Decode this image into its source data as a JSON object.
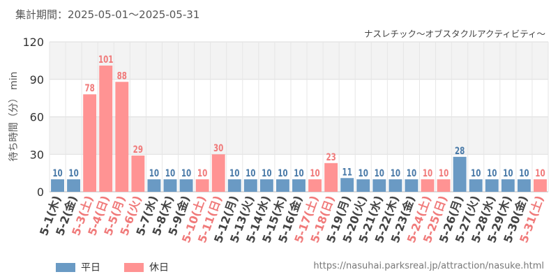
{
  "header": {
    "period": "集計期間：2025-05-01～2025-05-31",
    "attraction": "ナスレチック～オブスタクルアクティビティ～"
  },
  "legend": {
    "weekday": "平日",
    "holiday": "休日"
  },
  "source": "https://nasuhai.parksreal.jp/attraction/nasuke.html",
  "colors": {
    "weekday": "#6a9ac4",
    "holiday": "#ff9393",
    "weekday_label": "#4a7aa8",
    "holiday_label": "#f07a7a",
    "holiday_band": "#f3f3f3"
  },
  "chart_data": {
    "type": "bar",
    "ylabel": "待ち時間（分） min",
    "ylim": [
      0,
      120
    ],
    "yticks": [
      0,
      30,
      60,
      90,
      120
    ],
    "grid": true,
    "legend_position": "bottom-left",
    "categories": [
      "5-1(木)",
      "5-2(金)",
      "5-3(土)",
      "5-4(日)",
      "5-5(月)",
      "5-6(火)",
      "5-7(水)",
      "5-8(木)",
      "5-9(金)",
      "5-10(土)",
      "5-11(日)",
      "5-12(月)",
      "5-13(火)",
      "5-14(水)",
      "5-15(木)",
      "5-16(金)",
      "5-17(土)",
      "5-18(日)",
      "5-19(月)",
      "5-20(火)",
      "5-21(水)",
      "5-22(木)",
      "5-23(金)",
      "5-24(土)",
      "5-25(日)",
      "5-26(月)",
      "5-27(火)",
      "5-28(水)",
      "5-29(木)",
      "5-30(金)",
      "5-31(土)"
    ],
    "values": [
      10,
      10,
      78,
      101,
      88,
      29,
      10,
      10,
      10,
      10,
      30,
      10,
      10,
      10,
      10,
      10,
      10,
      23,
      11,
      10,
      10,
      10,
      10,
      10,
      10,
      28,
      10,
      10,
      10,
      10,
      10
    ],
    "holiday": [
      false,
      false,
      true,
      true,
      true,
      true,
      false,
      false,
      false,
      true,
      true,
      false,
      false,
      false,
      false,
      false,
      true,
      true,
      false,
      false,
      false,
      false,
      false,
      true,
      true,
      false,
      false,
      false,
      false,
      false,
      true
    ]
  }
}
